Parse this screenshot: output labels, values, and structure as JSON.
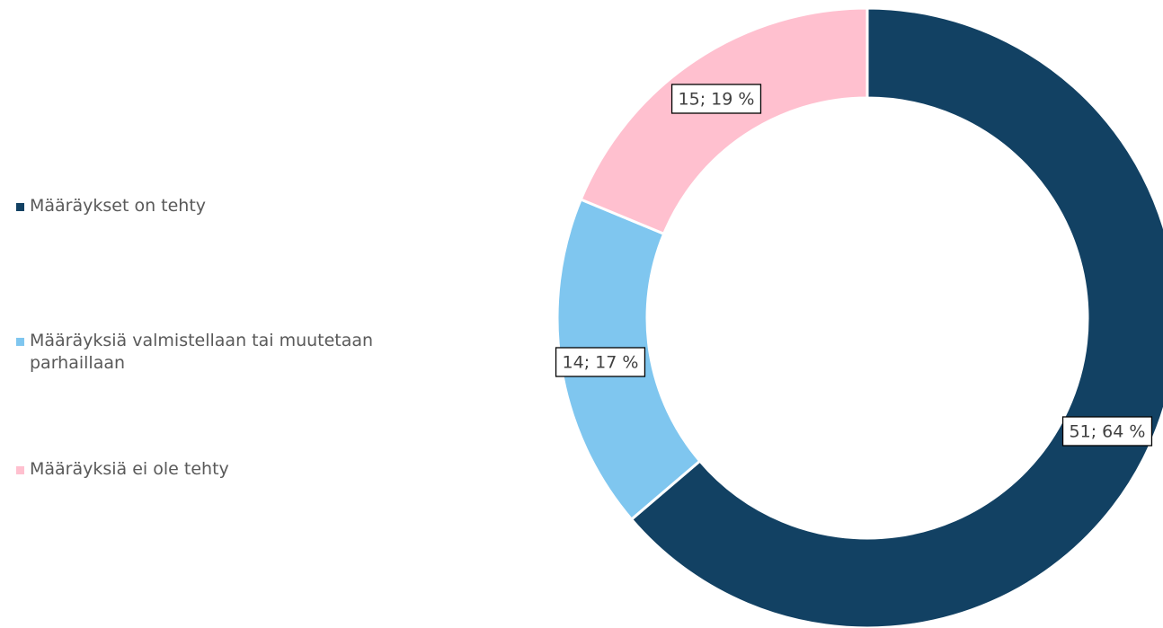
{
  "chart_data": {
    "type": "donut",
    "categories": [
      "Määräykset on tehty",
      "Määräyksiä valmistellaan tai muutetaan parhaillaan",
      "Määräyksiä ei ole tehty"
    ],
    "values": [
      51,
      14,
      15
    ],
    "value_labels": [
      "51; 64 %",
      "14; 17 %",
      "15; 19 %"
    ],
    "colors": [
      "#124163",
      "#7fc6ef",
      "#ffc0cf"
    ],
    "legend": "left"
  }
}
